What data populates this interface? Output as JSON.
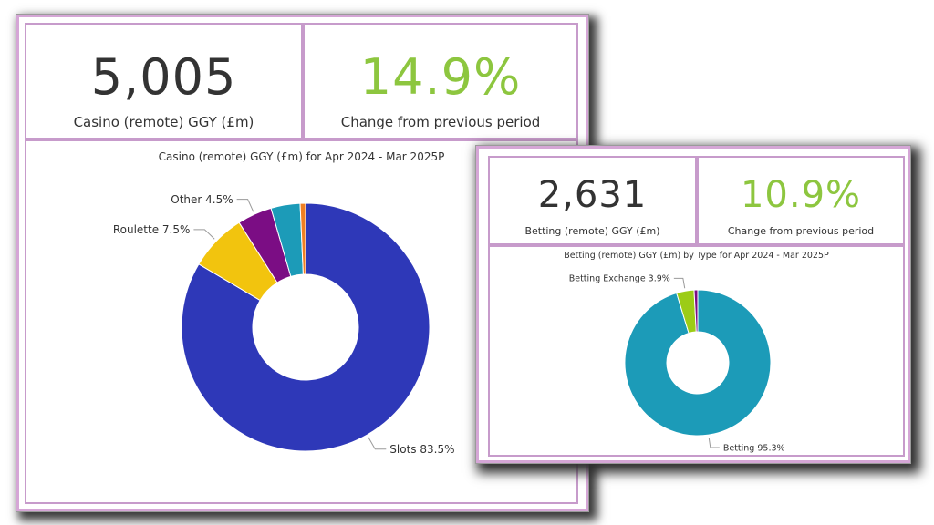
{
  "casino": {
    "kpi_value": "5,005",
    "kpi_label": "Casino (remote) GGY (£m)",
    "change_value": "14.9%",
    "change_label": "Change from previous period"
  },
  "betting": {
    "kpi_value": "2,631",
    "kpi_label": "Betting (remote) GGY (£m)",
    "change_value": "10.9%",
    "change_label": "Change from previous period"
  },
  "colors": {
    "positive": "#8dc63f",
    "border": "#d5a6d6",
    "slots": "#2e38b8",
    "roulette": "#f2c40e",
    "other": "#7b0d84",
    "teal": "#1c9bb8",
    "orange": "#f07f23",
    "lime": "#9ccc16"
  },
  "chart_data": [
    {
      "type": "pie",
      "donut": true,
      "title": "Casino (remote) GGY (£m) for Apr 2024 - Mar 2025P",
      "series": [
        {
          "name": "Slots",
          "value": 83.5,
          "color": "#2e38b8",
          "label": "Slots 83.5%"
        },
        {
          "name": "Roulette",
          "value": 7.5,
          "color": "#f2c40e",
          "label": "Roulette 7.5%"
        },
        {
          "name": "Other",
          "value": 4.5,
          "color": "#7b0d84",
          "label": "Other 4.5%"
        },
        {
          "name": "",
          "value": 3.8,
          "color": "#1c9bb8",
          "label": ""
        },
        {
          "name": "",
          "value": 0.7,
          "color": "#f07f23",
          "label": ""
        }
      ]
    },
    {
      "type": "pie",
      "donut": true,
      "title": "Betting (remote) GGY (£m) by Type for Apr 2024 - Mar 2025P",
      "series": [
        {
          "name": "Betting",
          "value": 95.3,
          "color": "#1c9bb8",
          "label": "Betting 95.3%"
        },
        {
          "name": "Betting Exchange",
          "value": 3.9,
          "color": "#9ccc16",
          "label": "Betting Exchange 3.9%"
        },
        {
          "name": "",
          "value": 0.8,
          "color": "#7b0d84",
          "label": ""
        }
      ]
    }
  ]
}
